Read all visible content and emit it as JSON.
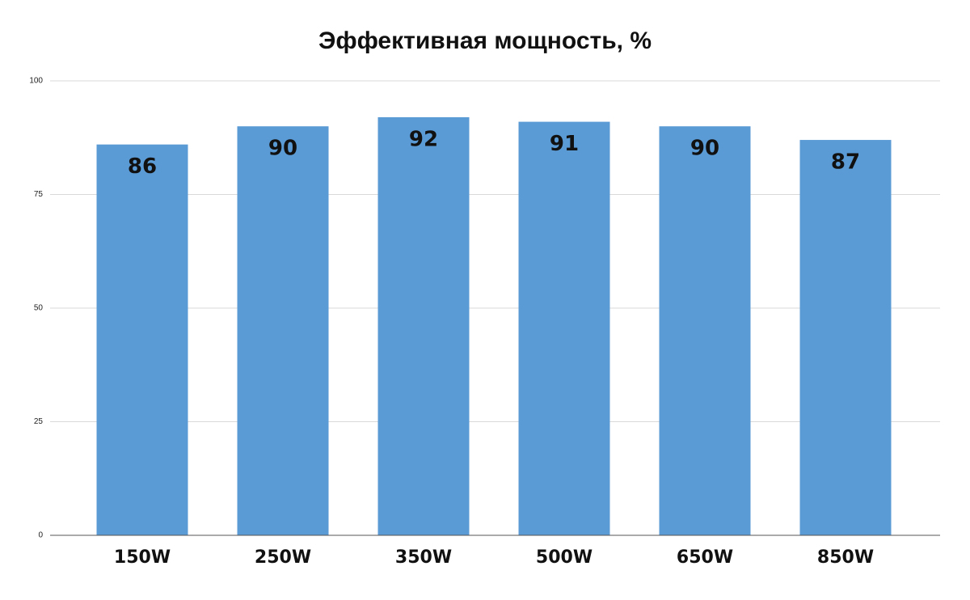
{
  "chart_data": {
    "type": "bar",
    "title": "Эффективная мощность, %",
    "categories": [
      "150W",
      "250W",
      "350W",
      "500W",
      "650W",
      "850W"
    ],
    "values": [
      86,
      90,
      92,
      91,
      90,
      87
    ],
    "color": "#5b9bd5",
    "ylim": [
      0,
      100
    ],
    "yticks": [
      0,
      25,
      50,
      75,
      100
    ],
    "grid": true
  }
}
